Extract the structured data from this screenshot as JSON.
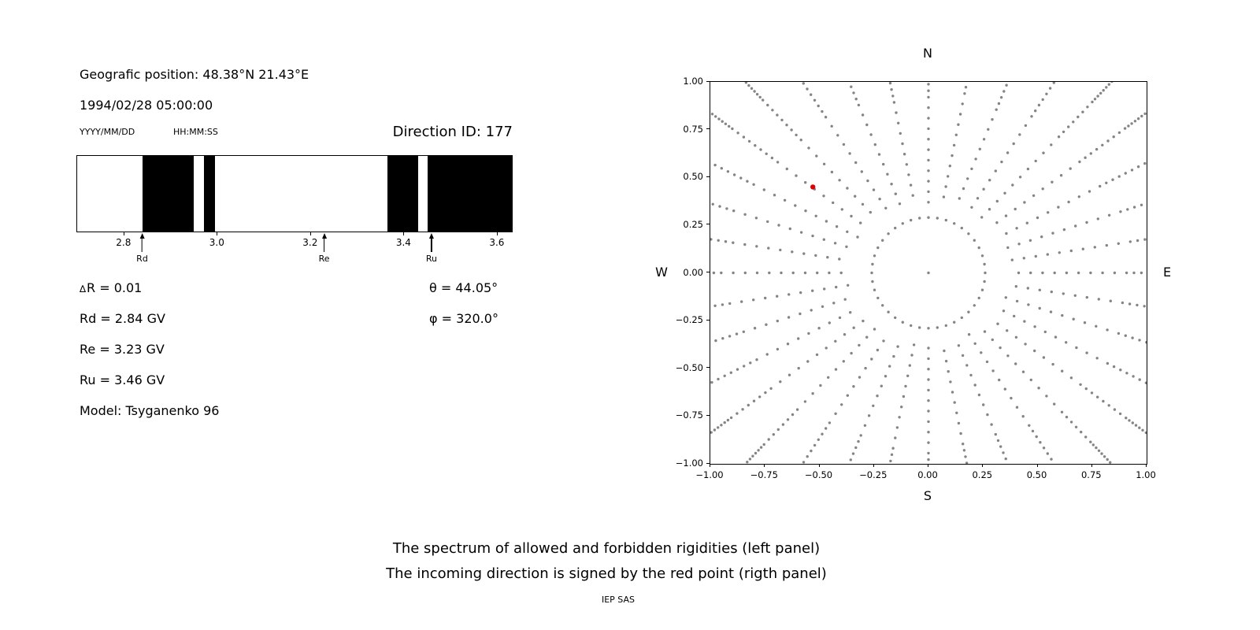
{
  "header": {
    "position": "Geografic position: 48.38°N 21.43°E",
    "datetime": "1994/02/28 05:00:00",
    "date_format_label": "YYYY/MM/DD",
    "time_format_label": "HH:MM:SS",
    "direction_id_label": "Direction ID: 177"
  },
  "info": {
    "delta_symbol": "∆",
    "delta_text": "R = 0.01",
    "rd": "Rd = 2.84 GV",
    "re": "Re = 3.23 GV",
    "ru": "Ru = 3.46 GV",
    "model": "Model: Tsyganenko 96",
    "theta": "θ = 44.05°",
    "phi": "φ = 320.0°"
  },
  "caption": {
    "line1": "The spectrum of allowed and forbidden rigidities (left panel)",
    "line2": "The incoming direction is signed by the red point (rigth panel)",
    "credit": "IEP SAS"
  },
  "chart_data": [
    {
      "type": "bar",
      "title": "",
      "xlabel": "",
      "ylabel": "",
      "xlim": [
        2.699,
        3.634
      ],
      "xticks": [
        {
          "value": 2.8,
          "label": "2.8"
        },
        {
          "value": 3.0,
          "label": "3.0"
        },
        {
          "value": 3.2,
          "label": "3.2"
        },
        {
          "value": 3.4,
          "label": "3.4"
        },
        {
          "value": 3.6,
          "label": "3.6"
        }
      ],
      "allowed_segments": [
        [
          2.84,
          2.949
        ],
        [
          2.972,
          2.996
        ],
        [
          3.367,
          3.433
        ],
        [
          3.453,
          3.634
        ]
      ],
      "markers": [
        {
          "label": "Rd",
          "value": 2.84
        },
        {
          "label": "Re",
          "value": 3.23
        },
        {
          "label": "Ru",
          "value": 3.46
        }
      ],
      "colors": {
        "allowed": "#000000",
        "forbidden": "#ffffff",
        "frame": "#000000"
      }
    },
    {
      "type": "scatter",
      "title": "",
      "xlim": [
        -1,
        1
      ],
      "ylim": [
        -1,
        1
      ],
      "xticks": [
        {
          "value": -1.0,
          "label": "−1.00"
        },
        {
          "value": -0.75,
          "label": "−0.75"
        },
        {
          "value": -0.5,
          "label": "−0.50"
        },
        {
          "value": -0.25,
          "label": "−0.25"
        },
        {
          "value": 0.0,
          "label": "0.00"
        },
        {
          "value": 0.25,
          "label": "0.25"
        },
        {
          "value": 0.5,
          "label": "0.50"
        },
        {
          "value": 0.75,
          "label": "0.75"
        },
        {
          "value": 1.0,
          "label": "1.00"
        }
      ],
      "yticks": [
        {
          "value": 1.0,
          "label": "1.00"
        },
        {
          "value": 0.75,
          "label": "0.75"
        },
        {
          "value": 0.5,
          "label": "0.50"
        },
        {
          "value": 0.25,
          "label": "0.25"
        },
        {
          "value": 0.0,
          "label": "0.00"
        },
        {
          "value": -0.25,
          "label": "−0.25"
        },
        {
          "value": -0.5,
          "label": "−0.50"
        },
        {
          "value": -0.75,
          "label": "−0.75"
        },
        {
          "value": -1.0,
          "label": "−1.00"
        }
      ],
      "compass": {
        "top": "N",
        "bottom": "S",
        "left": "W",
        "right": "E"
      },
      "red_point": {
        "x": -0.53,
        "y": 0.45
      },
      "spokes": {
        "count": 36,
        "step_deg": 10,
        "r_start": 0.37,
        "r_end": 1.45,
        "mid_r": 0.9,
        "outer_r": 1.15,
        "dot_step_inner": 0.055,
        "dot_step_mid": 0.034,
        "dot_step_outer": 0.02
      },
      "inner_ring": {
        "rx": 0.26,
        "ry": 0.29,
        "count": 40
      },
      "center_dot": true,
      "colors": {
        "dots": "#848484",
        "red_point": "#e00000",
        "frame": "#000000"
      }
    }
  ]
}
